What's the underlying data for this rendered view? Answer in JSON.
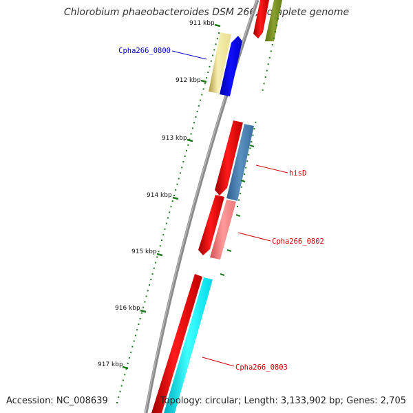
{
  "map": {
    "title": "Chlorobium phaeobacteroides DSM 266, complete genome",
    "accession": "Accession: NC_008639",
    "summary": "Topology: circular; Length: 3,133,902 bp; Genes: 2,705",
    "kbp_labels": [
      "911 kbp",
      "912 kbp",
      "913 kbp",
      "914 kbp",
      "915 kbp",
      "916 kbp",
      "917 kbp"
    ],
    "gene_labels": [
      {
        "text": "Cpha266_0800",
        "color": "#0000cc"
      },
      {
        "text": "hisD",
        "color": "#cc0000"
      },
      {
        "text": "Cpha266_0802",
        "color": "#cc0000"
      },
      {
        "text": "Cpha266_0803",
        "color": "#cc0000"
      }
    ]
  }
}
